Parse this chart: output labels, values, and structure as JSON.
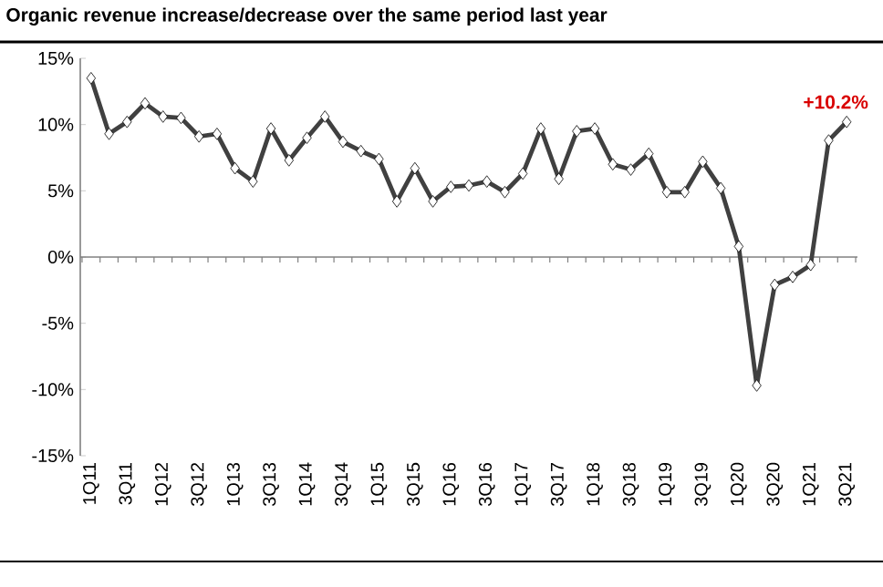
{
  "chart_data": {
    "type": "line",
    "title": "Organic revenue increase/decrease over the same period last year",
    "categories": [
      "1Q11",
      null,
      "3Q11",
      null,
      "1Q12",
      null,
      "3Q12",
      null,
      "1Q13",
      null,
      "3Q13",
      null,
      "1Q14",
      null,
      "3Q14",
      null,
      "1Q15",
      null,
      "3Q15",
      null,
      "1Q16",
      null,
      "3Q16",
      null,
      "1Q17",
      null,
      "3Q17",
      null,
      "1Q18",
      null,
      "3Q18",
      null,
      "1Q19",
      null,
      "3Q19",
      null,
      "1Q20",
      null,
      "3Q20",
      null,
      "1Q21",
      null,
      "3Q21"
    ],
    "series": [
      {
        "color": "#404040",
        "values": [
          13.5,
          9.3,
          10.2,
          11.6,
          10.6,
          10.5,
          9.1,
          9.3,
          6.7,
          5.7,
          9.7,
          7.3,
          9.0,
          10.6,
          8.7,
          8.0,
          7.4,
          4.2,
          6.7,
          4.2,
          5.3,
          5.4,
          5.7,
          4.9,
          6.3,
          9.7,
          5.9,
          9.5,
          9.7,
          7.0,
          6.6,
          7.8,
          4.9,
          4.9,
          7.2,
          5.2,
          0.8,
          -9.7,
          -2.1,
          -1.5,
          -0.6,
          8.8,
          10.2
        ]
      }
    ],
    "ylim": [
      -15,
      15
    ],
    "yticks": [
      {
        "value": -15,
        "label": "-15%"
      },
      {
        "value": -10,
        "label": "-10%"
      },
      {
        "value": -5,
        "label": "-5%"
      },
      {
        "value": 0,
        "label": "0%"
      },
      {
        "value": 5,
        "label": "5%"
      },
      {
        "value": 10,
        "label": "10%"
      },
      {
        "value": 15,
        "label": "15%"
      }
    ],
    "marker": "diamond",
    "line_style": "solid",
    "annotations": [
      {
        "text": "+10.2%",
        "x": "3Q21",
        "y": 10.2
      }
    ]
  }
}
